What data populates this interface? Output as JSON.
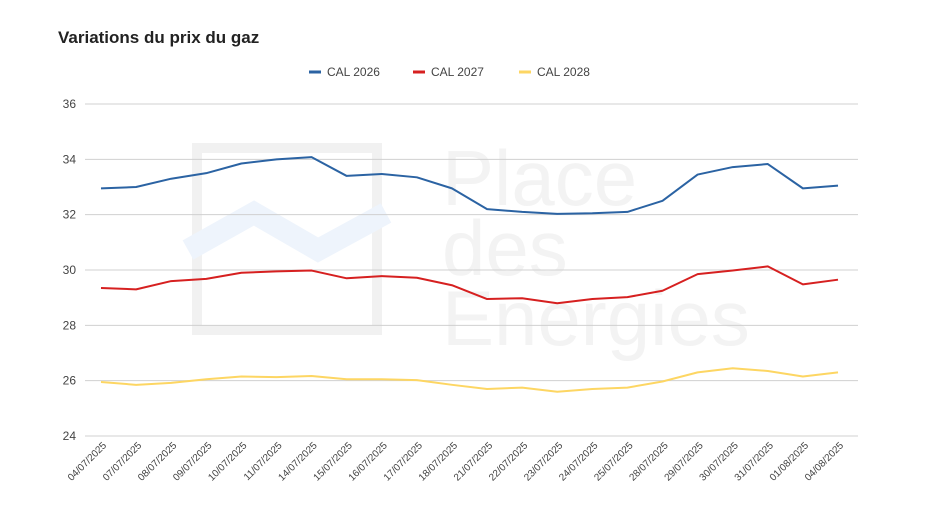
{
  "chart_data": {
    "type": "line",
    "title": "Variations du prix du gaz",
    "xlabel": "",
    "ylabel": "",
    "ylim": [
      24,
      36
    ],
    "yticks": [
      24,
      26,
      28,
      30,
      32,
      34,
      36
    ],
    "grid": true,
    "legend_position": "top",
    "categories": [
      "04/07/2025",
      "07/07/2025",
      "08/07/2025",
      "09/07/2025",
      "10/07/2025",
      "11/07/2025",
      "14/07/2025",
      "15/07/2025",
      "16/07/2025",
      "17/07/2025",
      "18/07/2025",
      "21/07/2025",
      "22/07/2025",
      "23/07/2025",
      "24/07/2025",
      "25/07/2025",
      "28/07/2025",
      "29/07/2025",
      "30/07/2025",
      "31/07/2025",
      "01/08/2025",
      "04/08/2025"
    ],
    "series": [
      {
        "name": "CAL 2026",
        "color": "#2b63a3",
        "values": [
          32.95,
          33.0,
          33.3,
          33.5,
          33.85,
          34.0,
          34.08,
          33.4,
          33.47,
          33.35,
          32.95,
          32.2,
          32.1,
          32.03,
          32.05,
          32.1,
          32.5,
          33.45,
          33.72,
          33.83,
          32.95,
          33.05
        ]
      },
      {
        "name": "CAL 2027",
        "color": "#d62020",
        "values": [
          29.35,
          29.3,
          29.6,
          29.68,
          29.9,
          29.95,
          29.98,
          29.7,
          29.78,
          29.72,
          29.45,
          28.95,
          28.98,
          28.8,
          28.95,
          29.02,
          29.25,
          29.85,
          29.98,
          30.13,
          29.48,
          29.65
        ]
      },
      {
        "name": "CAL 2028",
        "color": "#fdd663",
        "values": [
          25.95,
          25.85,
          25.92,
          26.05,
          26.15,
          26.13,
          26.17,
          26.05,
          26.05,
          26.02,
          25.85,
          25.7,
          25.75,
          25.6,
          25.7,
          25.75,
          25.97,
          26.3,
          26.45,
          26.35,
          26.15,
          26.3
        ]
      }
    ]
  },
  "watermark": "Place des Energies"
}
